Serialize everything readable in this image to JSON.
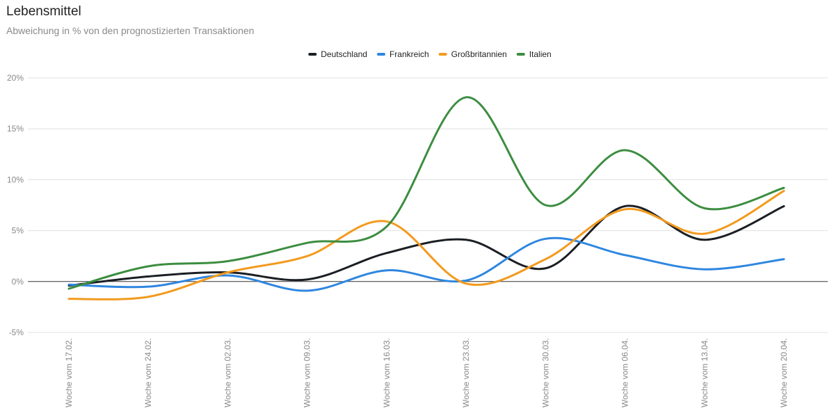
{
  "chart_data": {
    "type": "line",
    "title": "Lebensmittel",
    "subtitle": "Abweichung in % von den prognostizierten Transaktionen",
    "categories": [
      "Woche vom 17.02.",
      "Woche vom 24.02.",
      "Woche vom 02.03.",
      "Woche vom 09.03.",
      "Woche vom 16.03.",
      "Woche vom 23.03.",
      "Woche vom 30.03.",
      "Woche vom 06.04.",
      "Woche vom 13.04.",
      "Woche vom 20.04."
    ],
    "series": [
      {
        "name": "Deutschland",
        "color": "#1b1f24",
        "values": [
          -0.4,
          0.5,
          0.9,
          0.2,
          2.8,
          4.1,
          1.3,
          7.4,
          4.1,
          7.4
        ]
      },
      {
        "name": "Frankreich",
        "color": "#2e86e0",
        "values": [
          -0.3,
          -0.5,
          0.6,
          -0.9,
          1.1,
          0.1,
          4.2,
          2.6,
          1.2,
          2.2
        ]
      },
      {
        "name": "Großbritannien",
        "color": "#f39a1e",
        "values": [
          -1.7,
          -1.5,
          0.9,
          2.5,
          5.9,
          -0.2,
          2.2,
          7.1,
          4.7,
          8.9
        ]
      },
      {
        "name": "Italien",
        "color": "#3c8d40",
        "values": [
          -0.7,
          1.5,
          2.0,
          3.8,
          5.4,
          18.1,
          7.5,
          12.9,
          7.2,
          9.2
        ]
      }
    ],
    "yticks": [
      "20%",
      "15%",
      "10%",
      "5%",
      "0%",
      "-5%"
    ],
    "ytick_values": [
      20,
      15,
      10,
      5,
      0,
      -5
    ],
    "ylim": [
      -5,
      20
    ],
    "xlabel": "",
    "ylabel": "",
    "legend_position": "top-center",
    "grid": true
  }
}
